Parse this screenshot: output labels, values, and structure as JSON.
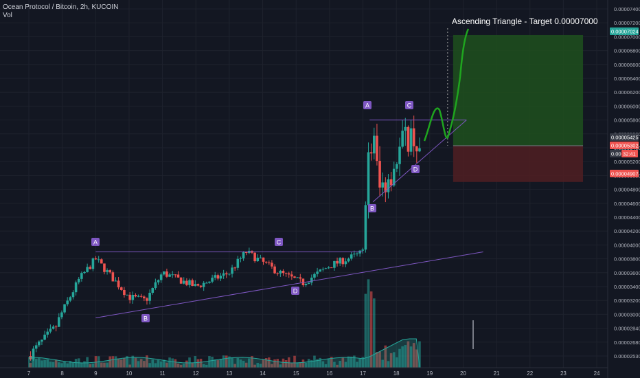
{
  "header": {
    "title": "Ocean Protocol / Bitcoin, 2h, KUCOIN",
    "volume_label": "Vol"
  },
  "annotation": {
    "title": "Ascending Triangle - Target 0.00007000"
  },
  "colors": {
    "background": "#131722",
    "up": "#26a69a",
    "down": "#ef5350",
    "pattern": "#7e57c2",
    "forecast": "#1fa51f",
    "target_zone": "#1e4d1e",
    "stop_zone": "#4d1e22"
  },
  "chart_data": {
    "type": "candlestick",
    "y_tick_labels": [
      "0.00007400",
      "0.00007200",
      "0.00007000",
      "0.00006800",
      "0.00006600",
      "0.00006400",
      "0.00006200",
      "0.00006000",
      "0.00005800",
      "0.00005600",
      "0.00005400",
      "0.00005200",
      "0.00005000",
      "0.00004800",
      "0.00004600",
      "0.00004400",
      "0.00004200",
      "0.00004000",
      "0.00003800",
      "0.00003600",
      "0.00003400",
      "0.00003200",
      "0.00003000",
      "0.00002840",
      "0.00002680",
      "0.00002530"
    ],
    "x_tick_labels": [
      "7",
      "8",
      "9",
      "10",
      "11",
      "12",
      "13",
      "14",
      "15",
      "16",
      "17",
      "18",
      "19",
      "20",
      "21",
      "22",
      "23",
      "24"
    ],
    "price_tags": [
      {
        "label": "0.00007024",
        "color": "#26a69a"
      },
      {
        "label": "0.00005425",
        "color": "#363a45"
      },
      {
        "label": "0.00005302",
        "color": "#ef5350"
      },
      {
        "label": "0.0000",
        "color": "#363a45"
      },
      {
        "label": "32:41",
        "color": "#ef5350"
      },
      {
        "label": "0.00004907",
        "color": "#ef5350"
      }
    ],
    "pattern_labels": [
      "A",
      "B",
      "C",
      "D",
      "A",
      "B",
      "C",
      "D"
    ],
    "first_triangle": {
      "resistance": 3.9e-05,
      "support_start": [
        "9",
        2.96e-05
      ],
      "support_end": [
        "20.6",
        3.9e-05
      ]
    },
    "second_triangle": {
      "resistance": 5.8e-05,
      "support_start": [
        "17.3",
        4.62e-05
      ],
      "support_end": [
        "20.1",
        5.8e-05
      ]
    },
    "position": {
      "entry": 5.43e-05,
      "target": 7.024e-05,
      "stop": 4.907e-05,
      "start_x": "19.7",
      "end_x": "24"
    }
  }
}
